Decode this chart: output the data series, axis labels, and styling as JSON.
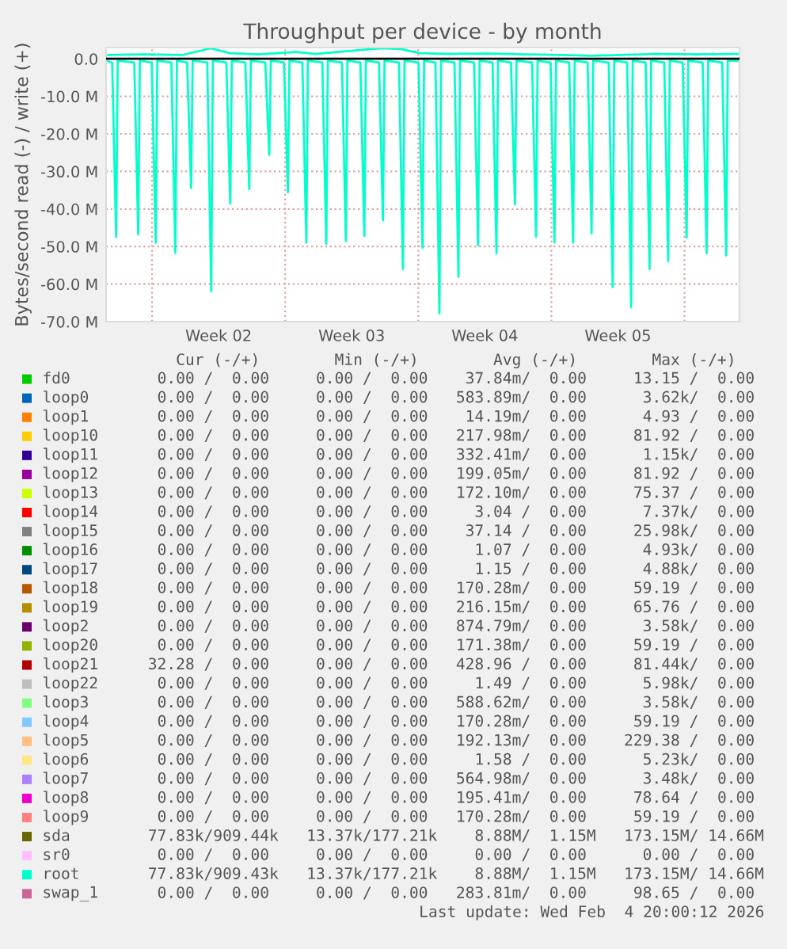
{
  "chart_data": {
    "type": "line",
    "title": "Throughput per device - by month",
    "ylabel": "Bytes/second read (-) / write (+)",
    "xlim": [
      "2026-01-02T14:00",
      "2026-02-04T21:25"
    ],
    "ylim": [
      -70,
      3.0
    ],
    "xticks": [
      {
        "value": "2026-01-05",
        "label": null
      },
      {
        "value": "2026-01-08T12:00",
        "label": "Week 02"
      },
      {
        "value": "2026-01-12",
        "label": null
      },
      {
        "value": "2026-01-15T12:00",
        "label": "Week 03"
      },
      {
        "value": "2026-01-19",
        "label": null
      },
      {
        "value": "2026-01-22T12:00",
        "label": "Week 04"
      },
      {
        "value": "2026-01-26",
        "label": null
      },
      {
        "value": "2026-01-29T12:00",
        "label": "Week 05"
      },
      {
        "value": "2026-02-02",
        "label": null
      }
    ],
    "yticks": [
      {
        "value": 0,
        "label": "0.0"
      },
      {
        "value": -10,
        "label": "-10.0 M"
      },
      {
        "value": -20,
        "label": "-20.0 M"
      },
      {
        "value": -30,
        "label": "-30.0 M"
      },
      {
        "value": -40,
        "label": "-40.0 M"
      },
      {
        "value": -50,
        "label": "-50.0 M"
      },
      {
        "value": -60,
        "label": "-60.0 M"
      },
      {
        "value": -70,
        "label": "-70.0 M"
      }
    ],
    "grid": true,
    "legend": "bottom",
    "ref_lines": [
      {
        "axis": "y",
        "value": 0,
        "label": null,
        "color": "#000000"
      }
    ],
    "series": [
      {
        "name": "fd0",
        "color": "#00cc00"
      },
      {
        "name": "loop0",
        "color": "#0066b3"
      },
      {
        "name": "loop1",
        "color": "#ff8000"
      },
      {
        "name": "loop10",
        "color": "#ffcc00"
      },
      {
        "name": "loop11",
        "color": "#330099"
      },
      {
        "name": "loop12",
        "color": "#990099"
      },
      {
        "name": "loop13",
        "color": "#ccff00"
      },
      {
        "name": "loop14",
        "color": "#ff0000"
      },
      {
        "name": "loop15",
        "color": "#808080"
      },
      {
        "name": "loop16",
        "color": "#008f00"
      },
      {
        "name": "loop17",
        "color": "#00487d"
      },
      {
        "name": "loop18",
        "color": "#b35a00"
      },
      {
        "name": "loop19",
        "color": "#b38f00"
      },
      {
        "name": "loop2",
        "color": "#6b006b"
      },
      {
        "name": "loop20",
        "color": "#8fb300"
      },
      {
        "name": "loop21",
        "color": "#b30000"
      },
      {
        "name": "loop22",
        "color": "#bebebe"
      },
      {
        "name": "loop3",
        "color": "#80ff80"
      },
      {
        "name": "loop4",
        "color": "#80c9ff"
      },
      {
        "name": "loop5",
        "color": "#ffc080"
      },
      {
        "name": "loop6",
        "color": "#ffe680"
      },
      {
        "name": "loop7",
        "color": "#aa80ff"
      },
      {
        "name": "loop8",
        "color": "#ee00cc"
      },
      {
        "name": "loop9",
        "color": "#ff8080"
      },
      {
        "name": "sda",
        "color": "#666600"
      },
      {
        "name": "sr0",
        "color": "#ffbfff"
      },
      {
        "name": "root",
        "color": "#00ffcc",
        "x": [
          "2026-01-02T14:00",
          "2026-01-02T21:40",
          "2026-01-03T02:40",
          "2026-01-03T04:40",
          "2026-01-04T01:35",
          "2026-01-04T06:35",
          "2026-01-04T08:35",
          "2026-01-04T23:38",
          "2026-01-05T04:38",
          "2026-01-05T06:38",
          "2026-01-06T00:22",
          "2026-01-06T05:22",
          "2026-01-06T07:22",
          "2026-01-06T20:17",
          "2026-01-07T01:17",
          "2026-01-07T03:17",
          "2026-01-07T21:43",
          "2026-01-08T02:43",
          "2026-01-08T04:43",
          "2026-01-08T21:43",
          "2026-01-09T02:43",
          "2026-01-09T04:43",
          "2026-01-09T21:43",
          "2026-01-10T02:43",
          "2026-01-10T04:43",
          "2026-01-10T22:55",
          "2026-01-11T03:55",
          "2026-01-11T05:55",
          "2026-01-11T22:26",
          "2026-01-12T03:26",
          "2026-01-12T05:26",
          "2026-01-12T21:43",
          "2026-01-13T02:43",
          "2026-01-13T04:43",
          "2026-01-13T22:55",
          "2026-01-14T03:55",
          "2026-01-14T05:55",
          "2026-01-14T23:38",
          "2026-01-15T04:38",
          "2026-01-15T06:38",
          "2026-01-15T22:55",
          "2026-01-16T03:55",
          "2026-01-16T05:55",
          "2026-01-16T22:26",
          "2026-01-17T03:26",
          "2026-01-17T05:26",
          "2026-01-17T23:38",
          "2026-01-18T04:38",
          "2026-01-18T06:38",
          "2026-01-19T00:22",
          "2026-01-19T05:22",
          "2026-01-19T07:22",
          "2026-01-19T21:43",
          "2026-01-20T02:43",
          "2026-01-20T04:43",
          "2026-01-20T21:43",
          "2026-01-21T02:43",
          "2026-01-21T04:43",
          "2026-01-21T22:26",
          "2026-01-22T03:26",
          "2026-01-22T05:26",
          "2026-01-22T21:43",
          "2026-01-23T02:43",
          "2026-01-23T04:43",
          "2026-01-23T21:00",
          "2026-01-24T02:00",
          "2026-01-24T04:00",
          "2026-01-24T23:38",
          "2026-01-25T04:38",
          "2026-01-25T06:38",
          "2026-01-25T22:55",
          "2026-01-26T03:55",
          "2026-01-26T05:55",
          "2026-01-26T22:26",
          "2026-01-27T03:26",
          "2026-01-27T05:26",
          "2026-01-27T21:43",
          "2026-01-28T02:43",
          "2026-01-28T04:43",
          "2026-01-29T00:22",
          "2026-01-29T05:22",
          "2026-01-29T07:22",
          "2026-01-29T23:38",
          "2026-01-30T04:38",
          "2026-01-30T06:38",
          "2026-01-30T22:55",
          "2026-01-31T03:55",
          "2026-01-31T05:55",
          "2026-01-31T22:26",
          "2026-02-01T03:26",
          "2026-02-01T05:26",
          "2026-02-01T21:43",
          "2026-02-02T02:43",
          "2026-02-02T04:43",
          "2026-02-02T22:55",
          "2026-02-03T03:55",
          "2026-02-03T05:55",
          "2026-02-03T23:38",
          "2026-02-04T04:38",
          "2026-02-04T06:38",
          "2026-02-04T21:25"
        ],
        "values": [
          -0.5,
          -1,
          -47.5,
          -0.5,
          -1,
          -46.8,
          -0.5,
          -1,
          -49,
          -0.5,
          -1,
          -51.7,
          -0.5,
          -1,
          -34.4,
          -0.5,
          -1,
          -61.9,
          -0.5,
          -1,
          -38.6,
          -0.5,
          -1,
          -34.7,
          -0.5,
          -1,
          -25.6,
          -0.5,
          -1,
          -35.6,
          -0.5,
          -1,
          -49,
          -0.5,
          -1,
          -49.3,
          -0.5,
          -1,
          -48.6,
          -0.5,
          -1,
          -47.2,
          -0.5,
          -1,
          -43,
          -0.5,
          -1,
          -56,
          -0.5,
          -1,
          -50.3,
          -0.5,
          -1,
          -67.8,
          -0.5,
          -1,
          -58.1,
          -0.5,
          -1,
          -49.7,
          -0.5,
          -1,
          -51.8,
          -0.5,
          -1,
          -38.8,
          -0.5,
          -1,
          -47.4,
          -0.5,
          -1,
          -48.9,
          -0.5,
          -1,
          -49,
          -0.5,
          -1,
          -46.5,
          -0.5,
          -1,
          -60.8,
          -0.5,
          -1,
          -66.1,
          -0.5,
          -1,
          -56,
          -0.5,
          -1,
          -53.9,
          -0.5,
          -1,
          -47.6,
          -0.5,
          -1,
          -51.8,
          -0.5,
          -1,
          -52.4,
          -0.5,
          -0.5
        ]
      },
      {
        "color": "#00ffcc",
        "x": [
          "2026-01-02T14:00",
          "2026-01-04T14:00",
          "2026-01-06T14:00",
          "2026-01-08T02:00",
          "2026-01-09T02:00",
          "2026-01-10T14:00",
          "2026-01-12T14:00",
          "2026-01-13T14:00",
          "2026-01-16T02:00",
          "2026-01-17T02:00",
          "2026-01-18T02:00",
          "2026-01-19T02:00",
          "2026-01-20T14:00",
          "2026-01-22T14:00",
          "2026-01-24T14:00",
          "2026-01-26T14:00",
          "2026-01-28T02:00",
          "2026-01-29T14:00",
          "2026-01-31T14:00",
          "2026-02-02T14:00",
          "2026-02-04T21:25"
        ],
        "values": [
          1.0,
          1.2,
          1.0,
          2.8,
          1.5,
          1.2,
          1.8,
          1.3,
          2.4,
          2.8,
          2.6,
          1.5,
          1.3,
          1.4,
          1.2,
          1.0,
          0.8,
          1.0,
          1.3,
          1.2,
          1.3
        ]
      },
      {
        "name": "swap_1",
        "color": "#cc6699"
      }
    ],
    "annotations": [
      "    Cur (-/+)        Min (-/+)        Avg (-/+)        Max (-/+)",
      "  0.00 /  0.00     0.00 /  0.00    37.84m/  0.00     13.15 /  0.00",
      "  0.00 /  0.00     0.00 /  0.00   583.89m/  0.00      3.62k/  0.00",
      "  0.00 /  0.00     0.00 /  0.00    14.19m/  0.00      4.93 /  0.00",
      "  0.00 /  0.00     0.00 /  0.00   217.98m/  0.00     81.92 /  0.00",
      "  0.00 /  0.00     0.00 /  0.00   332.41m/  0.00      1.15k/  0.00",
      "  0.00 /  0.00     0.00 /  0.00   199.05m/  0.00     81.92 /  0.00",
      "  0.00 /  0.00     0.00 /  0.00   172.10m/  0.00     75.37 /  0.00",
      "  0.00 /  0.00     0.00 /  0.00     3.04 /  0.00      7.37k/  0.00",
      "  0.00 /  0.00     0.00 /  0.00    37.14 /  0.00     25.98k/  0.00",
      "  0.00 /  0.00     0.00 /  0.00     1.07 /  0.00      4.93k/  0.00",
      "  0.00 /  0.00     0.00 /  0.00     1.15 /  0.00      4.88k/  0.00",
      "  0.00 /  0.00     0.00 /  0.00   170.28m/  0.00     59.19 /  0.00",
      "  0.00 /  0.00     0.00 /  0.00   216.15m/  0.00     65.76 /  0.00",
      "  0.00 /  0.00     0.00 /  0.00   874.79m/  0.00      3.58k/  0.00",
      "  0.00 /  0.00     0.00 /  0.00   171.38m/  0.00     59.19 /  0.00",
      " 32.28 /  0.00     0.00 /  0.00   428.96 /  0.00     81.44k/  0.00",
      "  0.00 /  0.00     0.00 /  0.00     1.49 /  0.00      5.98k/  0.00",
      "  0.00 /  0.00     0.00 /  0.00   588.62m/  0.00      3.58k/  0.00",
      "  0.00 /  0.00     0.00 /  0.00   170.28m/  0.00     59.19 /  0.00",
      "  0.00 /  0.00     0.00 /  0.00   192.13m/  0.00    229.38 /  0.00",
      "  0.00 /  0.00     0.00 /  0.00     1.58 /  0.00      5.23k/  0.00",
      "  0.00 /  0.00     0.00 /  0.00   564.98m/  0.00      3.48k/  0.00",
      "  0.00 /  0.00     0.00 /  0.00   195.41m/  0.00     78.64 /  0.00",
      "  0.00 /  0.00     0.00 /  0.00   170.28m/  0.00     59.19 /  0.00",
      " 77.83k/909.44k   13.37k/177.21k    8.88M/  1.15M   173.15M/ 14.66M",
      "  0.00 /  0.00     0.00 /  0.00     0.00 /  0.00      0.00 /  0.00",
      " 77.83k/909.43k   13.37k/177.21k    8.88M/  1.15M   173.15M/ 14.66M",
      "  0.00 /  0.00     0.00 /  0.00   283.81m/  0.00     98.65 /  0.00",
      "Last update: Wed Feb  4 20:00:12 2026"
    ]
  }
}
